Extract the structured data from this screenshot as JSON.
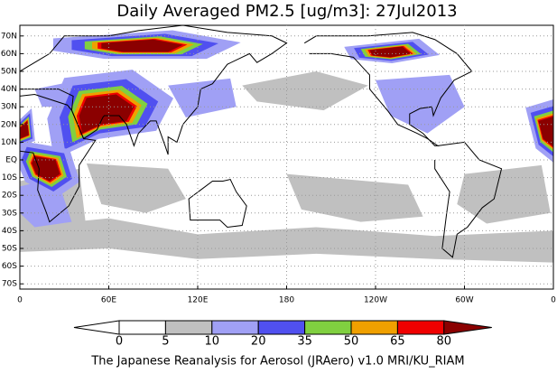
{
  "title": "Daily Averaged PM2.5 [ug/m3]: 27Jul2013",
  "map": {
    "lat_labels": [
      "70N",
      "60N",
      "50N",
      "40N",
      "30N",
      "20N",
      "10N",
      "EQ",
      "10S",
      "20S",
      "30S",
      "40S",
      "50S",
      "60S",
      "70S"
    ],
    "lon_labels": [
      "0",
      "60E",
      "120E",
      "180",
      "120W",
      "60W",
      "0"
    ]
  },
  "colorbar": {
    "levels": [
      0,
      5,
      10,
      20,
      35,
      50,
      65,
      80
    ],
    "colors": [
      "#ffffff",
      "#ffffff",
      "#c0c0c0",
      "#a0a0f5",
      "#5050f0",
      "#80d040",
      "#f0a000",
      "#f00000",
      "#8b0000"
    ]
  },
  "footer": "The Japanese Reanalysis for Aerosol (JRAero) v1.0 MRI/KU_RIAM"
}
